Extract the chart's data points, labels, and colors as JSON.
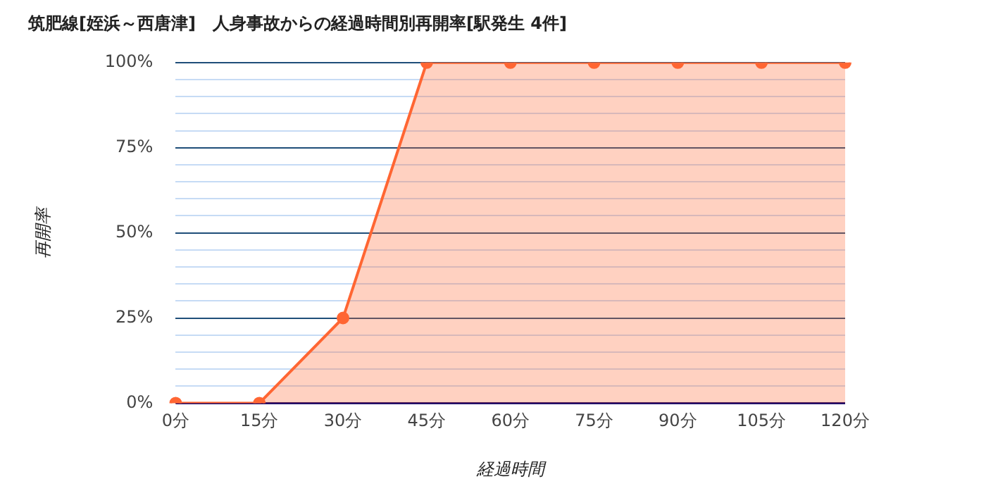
{
  "chart_data": {
    "type": "area",
    "title": "筑肥線[姪浜～西唐津]　人身事故からの経過時間別再開率[駅発生 4件]",
    "xlabel": "経過時間",
    "ylabel": "再開率",
    "categories": [
      "0分",
      "15分",
      "30分",
      "45分",
      "60分",
      "75分",
      "90分",
      "105分",
      "120分"
    ],
    "series": [
      {
        "color": "#ff6633",
        "values": [
          0,
          0,
          25,
          100,
          100,
          100,
          100,
          100,
          100
        ]
      }
    ],
    "ylim": [
      0,
      100
    ],
    "yticks": [
      {
        "value": 0,
        "label": "0%"
      },
      {
        "value": 5,
        "label": null
      },
      {
        "value": 10,
        "label": null
      },
      {
        "value": 15,
        "label": null
      },
      {
        "value": 20,
        "label": null
      },
      {
        "value": 25,
        "label": "25%"
      },
      {
        "value": 30,
        "label": null
      },
      {
        "value": 35,
        "label": null
      },
      {
        "value": 40,
        "label": null
      },
      {
        "value": 45,
        "label": null
      },
      {
        "value": 50,
        "label": "50%"
      },
      {
        "value": 55,
        "label": null
      },
      {
        "value": 60,
        "label": null
      },
      {
        "value": 65,
        "label": null
      },
      {
        "value": 70,
        "label": null
      },
      {
        "value": 75,
        "label": "75%"
      },
      {
        "value": 80,
        "label": null
      },
      {
        "value": 85,
        "label": null
      },
      {
        "value": 90,
        "label": null
      },
      {
        "value": 95,
        "label": null
      },
      {
        "value": 100,
        "label": "100%"
      }
    ],
    "grid": "y",
    "legend": false,
    "marker": "circle",
    "line_style": "solid"
  }
}
